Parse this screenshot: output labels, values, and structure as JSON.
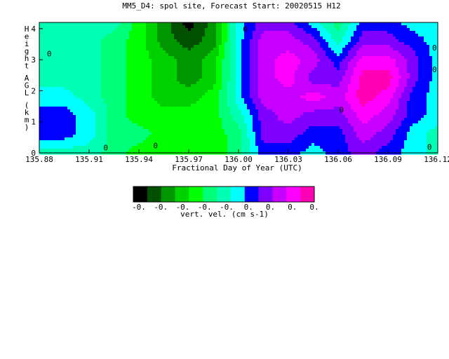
{
  "chart_data": {
    "type": "heatmap",
    "title": "MM5_D4: spol site,  Forecast Start: 20020515 H12",
    "xlabel": "Fractional Day of Year (UTC)",
    "ylabel": "Height AGL (km)",
    "xlim": [
      135.88,
      136.12
    ],
    "ylim": [
      0,
      4.2
    ],
    "xticks": [
      "135.88",
      "135.91",
      "135.94",
      "135.97",
      "136.00",
      "136.03",
      "136.06",
      "136.09",
      "136.12"
    ],
    "yticks": [
      "0",
      "1",
      "2",
      "3",
      "4"
    ],
    "contour_labels": [
      "0",
      "0",
      "0",
      "0",
      "0",
      "0",
      "0",
      "0"
    ],
    "colorbar": {
      "label": "vert. vel. (cm s-1)",
      "colors": [
        "#000000",
        "#005000",
        "#009600",
        "#00d200",
        "#00ff00",
        "#00ff78",
        "#00ffb4",
        "#00ffff",
        "#0000ff",
        "#8000ff",
        "#c800ff",
        "#ff00ff",
        "#ff00b4"
      ],
      "tick_labels": [
        "-0.",
        "-0.",
        "-0.",
        "-0.",
        "-0.",
        "0.",
        "0.",
        "0.",
        "0."
      ]
    },
    "field": {
      "x": [
        135.88,
        135.895,
        135.91,
        135.925,
        135.94,
        135.955,
        135.97,
        135.985,
        136.0,
        136.015,
        136.03,
        136.045,
        136.06,
        136.075,
        136.09,
        136.105,
        136.12
      ],
      "y": [
        0,
        0.6,
        1.2,
        1.8,
        2.4,
        3.0,
        3.6,
        4.2
      ],
      "values": [
        [
          6,
          6,
          6,
          5,
          4,
          4,
          4,
          4,
          5,
          8,
          8,
          7,
          8,
          9,
          8,
          7,
          6
        ],
        [
          8,
          8,
          7,
          5,
          5,
          4,
          4,
          4,
          5,
          9,
          9,
          8,
          8,
          10,
          9,
          7,
          6
        ],
        [
          8,
          8,
          7,
          5,
          4,
          4,
          4,
          4,
          6,
          9,
          10,
          9,
          9,
          11,
          10,
          8,
          7
        ],
        [
          7,
          7,
          6,
          5,
          4,
          3,
          3,
          4,
          7,
          10,
          10,
          11,
          10,
          12,
          11,
          8,
          7
        ],
        [
          6,
          6,
          6,
          5,
          4,
          3,
          2,
          3,
          7,
          10,
          11,
          9,
          9,
          12,
          12,
          9,
          7
        ],
        [
          6,
          6,
          6,
          5,
          4,
          3,
          2,
          3,
          7,
          10,
          11,
          10,
          8,
          11,
          11,
          9,
          7
        ],
        [
          6,
          6,
          6,
          5,
          4,
          2,
          1,
          2,
          7,
          10,
          10,
          9,
          6,
          9,
          9,
          8,
          7
        ],
        [
          6,
          6,
          6,
          6,
          4,
          2,
          0,
          2,
          7,
          9,
          9,
          7,
          5,
          8,
          8,
          7,
          7
        ]
      ]
    }
  }
}
